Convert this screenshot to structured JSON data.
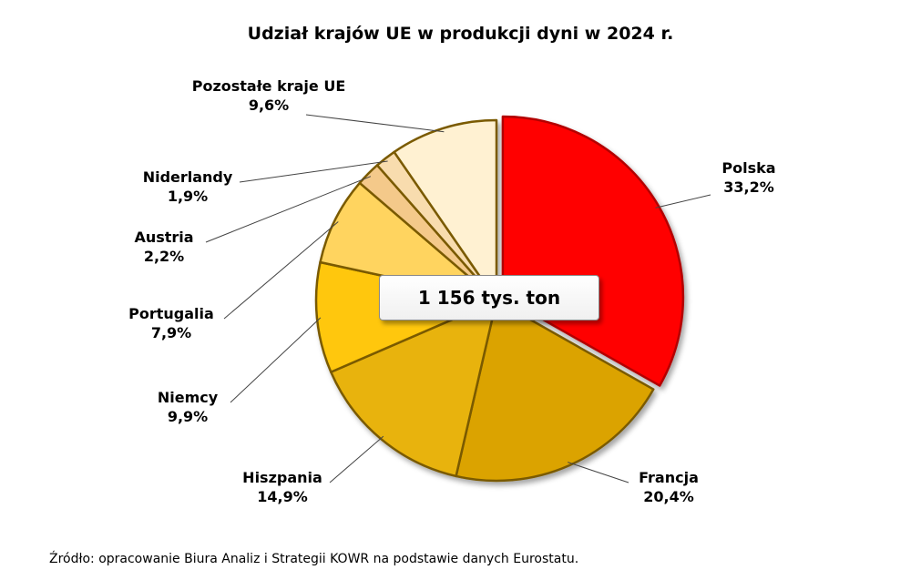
{
  "chart_data": {
    "type": "pie",
    "title": "Udział krajów UE w produkcji dyni w 2024 r.",
    "center_label": "1 156 tys. ton",
    "slices": [
      {
        "name": "Polska",
        "value": 33.2,
        "label": "33,2%",
        "color": "#ff0000"
      },
      {
        "name": "Francja",
        "value": 20.4,
        "label": "20,4%",
        "color": "#dba300"
      },
      {
        "name": "Hiszpania",
        "value": 14.9,
        "label": "14,9%",
        "color": "#e8b30b"
      },
      {
        "name": "Niemcy",
        "value": 9.9,
        "label": "9,9%",
        "color": "#ffc70a"
      },
      {
        "name": "Portugalia",
        "value": 7.9,
        "label": "7,9%",
        "color": "#ffd45e"
      },
      {
        "name": "Austria",
        "value": 2.2,
        "label": "2,2%",
        "color": "#f4c98a"
      },
      {
        "name": "Niderlandy",
        "value": 1.9,
        "label": "1,9%",
        "color": "#f8dcae"
      },
      {
        "name": "Pozostałe kraje UE",
        "value": 9.6,
        "label": "9,6%",
        "color": "#fff1d2"
      }
    ]
  },
  "source": "Źródło: opracowanie Biura Analiz i Strategii KOWR na podstawie danych Eurostatu."
}
